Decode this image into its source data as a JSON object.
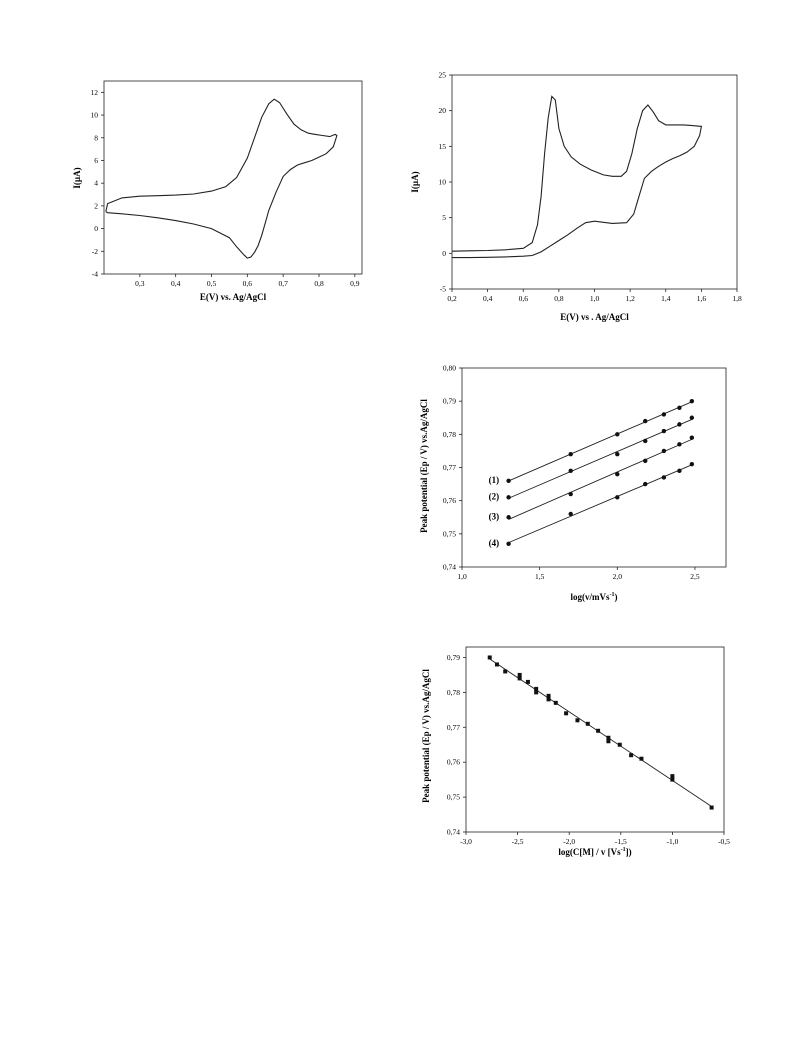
{
  "chart_data": [
    {
      "id": "cv1",
      "type": "line",
      "xlabel": "E(V) vs. Ag/AgCl",
      "ylabel": "I(µA)",
      "xlim": [
        0.2,
        0.92
      ],
      "ylim": [
        -4,
        13
      ],
      "xticks": [
        "0,3",
        "0,4",
        "0,5",
        "0,6",
        "0,7",
        "0,8",
        "0,9"
      ],
      "xtick_values": [
        0.3,
        0.4,
        0.5,
        0.6,
        0.7,
        0.8,
        0.9
      ],
      "yticks": [
        "-4",
        "-2",
        "0",
        "2",
        "4",
        "6",
        "8",
        "10",
        "12"
      ],
      "ytick_values": [
        -4,
        -2,
        0,
        2,
        4,
        6,
        8,
        10,
        12
      ],
      "series": [
        {
          "x": [
            0.205,
            0.21,
            0.25,
            0.3,
            0.35,
            0.4,
            0.45,
            0.5,
            0.54,
            0.57,
            0.6,
            0.62,
            0.64,
            0.66,
            0.675,
            0.69,
            0.71,
            0.73,
            0.75,
            0.77,
            0.79,
            0.81,
            0.83,
            0.845,
            0.85,
            0.84,
            0.82,
            0.8,
            0.78,
            0.76,
            0.74,
            0.72,
            0.7,
            0.68,
            0.66,
            0.65,
            0.64,
            0.63,
            0.62,
            0.61,
            0.6,
            0.59,
            0.57,
            0.55,
            0.5,
            0.45,
            0.4,
            0.35,
            0.3,
            0.25,
            0.21,
            0.205
          ],
          "y": [
            1.5,
            2.2,
            2.7,
            2.85,
            2.9,
            2.95,
            3.05,
            3.3,
            3.7,
            4.5,
            6.2,
            8.0,
            9.8,
            11.0,
            11.4,
            11.1,
            10.1,
            9.2,
            8.7,
            8.4,
            8.3,
            8.2,
            8.1,
            8.3,
            8.2,
            7.2,
            6.6,
            6.3,
            6.0,
            5.8,
            5.6,
            5.2,
            4.6,
            3.2,
            1.6,
            0.5,
            -0.6,
            -1.5,
            -2.1,
            -2.5,
            -2.6,
            -2.3,
            -1.6,
            -0.8,
            0.0,
            0.4,
            0.7,
            0.95,
            1.15,
            1.3,
            1.4,
            1.5
          ]
        }
      ]
    },
    {
      "id": "cv2",
      "type": "line",
      "xlabel": "E(V) vs . Ag/AgCl",
      "ylabel": "I(µA)",
      "xlim": [
        0.2,
        1.8
      ],
      "ylim": [
        -5,
        25
      ],
      "xticks": [
        "0,2",
        "0,4",
        "0,6",
        "0,8",
        "1,0",
        "1,2",
        "1,4",
        "1,6",
        "1,8"
      ],
      "xtick_values": [
        0.2,
        0.4,
        0.6,
        0.8,
        1.0,
        1.2,
        1.4,
        1.6,
        1.8
      ],
      "yticks": [
        "-5",
        "0",
        "5",
        "10",
        "15",
        "20",
        "25"
      ],
      "ytick_values": [
        -5,
        0,
        5,
        10,
        15,
        20,
        25
      ],
      "series": [
        {
          "x": [
            0.2,
            0.3,
            0.4,
            0.5,
            0.6,
            0.65,
            0.68,
            0.7,
            0.72,
            0.74,
            0.76,
            0.78,
            0.8,
            0.83,
            0.87,
            0.92,
            0.98,
            1.05,
            1.1,
            1.15,
            1.18,
            1.21,
            1.24,
            1.27,
            1.3,
            1.33,
            1.36,
            1.4,
            1.45,
            1.5,
            1.55,
            1.6,
            1.59,
            1.56,
            1.52,
            1.48,
            1.44,
            1.4,
            1.36,
            1.32,
            1.28,
            1.25,
            1.22,
            1.18,
            1.1,
            1.0,
            0.95,
            0.9,
            0.85,
            0.8,
            0.75,
            0.7,
            0.65,
            0.6,
            0.5,
            0.4,
            0.3,
            0.2
          ],
          "y": [
            0.3,
            0.35,
            0.4,
            0.5,
            0.7,
            1.5,
            4.0,
            8.0,
            14.0,
            19.0,
            22.0,
            21.5,
            17.5,
            15.0,
            13.5,
            12.5,
            11.7,
            11.0,
            10.8,
            10.8,
            11.5,
            14.0,
            17.5,
            20.0,
            20.8,
            19.8,
            18.6,
            18.0,
            18.0,
            18.0,
            17.9,
            17.8,
            16.5,
            15.0,
            14.2,
            13.7,
            13.3,
            12.8,
            12.2,
            11.5,
            10.5,
            8.0,
            5.5,
            4.3,
            4.2,
            4.5,
            4.3,
            3.5,
            2.6,
            1.8,
            1.0,
            0.2,
            -0.3,
            -0.4,
            -0.5,
            -0.55,
            -0.6,
            -0.6
          ]
        }
      ]
    },
    {
      "id": "ep-logv",
      "type": "scatter",
      "xlabel_parts": [
        "log(v/mVs",
        "-1",
        ")"
      ],
      "ylabel": "Peak potential (Ep / V) vs.Ag/AgCl",
      "xlim": [
        1.0,
        2.7
      ],
      "ylim": [
        0.74,
        0.8
      ],
      "xticks": [
        "1,0",
        "1,5",
        "2,0",
        "2,5"
      ],
      "xtick_values": [
        1.0,
        1.5,
        2.0,
        2.5
      ],
      "yticks": [
        "0,74",
        "0,75",
        "0,76",
        "0,77",
        "0,78",
        "0,79",
        "0,80"
      ],
      "ytick_values": [
        0.74,
        0.75,
        0.76,
        0.77,
        0.78,
        0.79,
        0.8
      ],
      "series": [
        {
          "name": "(1)",
          "x": [
            1.3,
            1.7,
            2.0,
            2.18,
            2.3,
            2.4,
            2.48
          ],
          "y": [
            0.766,
            0.774,
            0.78,
            0.784,
            0.786,
            0.788,
            0.79
          ]
        },
        {
          "name": "(2)",
          "x": [
            1.3,
            1.7,
            2.0,
            2.18,
            2.3,
            2.4,
            2.48
          ],
          "y": [
            0.761,
            0.769,
            0.774,
            0.778,
            0.781,
            0.783,
            0.785
          ]
        },
        {
          "name": "(3)",
          "x": [
            1.3,
            1.7,
            2.0,
            2.18,
            2.3,
            2.4,
            2.48
          ],
          "y": [
            0.755,
            0.762,
            0.768,
            0.772,
            0.775,
            0.777,
            0.779
          ]
        },
        {
          "name": "(4)",
          "x": [
            1.3,
            1.7,
            2.0,
            2.18,
            2.3,
            2.4,
            2.48
          ],
          "y": [
            0.747,
            0.756,
            0.761,
            0.765,
            0.767,
            0.769,
            0.771
          ]
        }
      ]
    },
    {
      "id": "ep-logc",
      "type": "scatter",
      "xlabel_parts": [
        "log(C[M] / v [Vs",
        "-1",
        "])"
      ],
      "ylabel": "Peak potential (Ep / V) vs.Ag/AgCl",
      "xlim": [
        -3.0,
        -0.5
      ],
      "ylim": [
        0.74,
        0.793
      ],
      "xticks": [
        "-3,0",
        "-2,5",
        "-2,0",
        "-1,5",
        "-1,0",
        "-0,5"
      ],
      "xtick_values": [
        -3.0,
        -2.5,
        -2.0,
        -1.5,
        -1.0,
        -0.5
      ],
      "yticks": [
        "0,74",
        "0,75",
        "0,76",
        "0,77",
        "0,78",
        "0,79"
      ],
      "ytick_values": [
        0.74,
        0.75,
        0.76,
        0.77,
        0.78,
        0.79
      ],
      "series": [
        {
          "x": [
            -2.77,
            -2.7,
            -2.62,
            -2.48,
            -2.48,
            -2.4,
            -2.32,
            -2.32,
            -2.2,
            -2.2,
            -2.13,
            -2.03,
            -1.92,
            -1.82,
            -1.72,
            -1.62,
            -1.62,
            -1.51,
            -1.4,
            -1.3,
            -1.0,
            -1.0,
            -0.62
          ],
          "y": [
            0.79,
            0.788,
            0.786,
            0.785,
            0.784,
            0.783,
            0.781,
            0.78,
            0.779,
            0.778,
            0.777,
            0.774,
            0.772,
            0.771,
            0.769,
            0.767,
            0.766,
            0.765,
            0.762,
            0.761,
            0.756,
            0.755,
            0.747
          ]
        }
      ]
    }
  ]
}
